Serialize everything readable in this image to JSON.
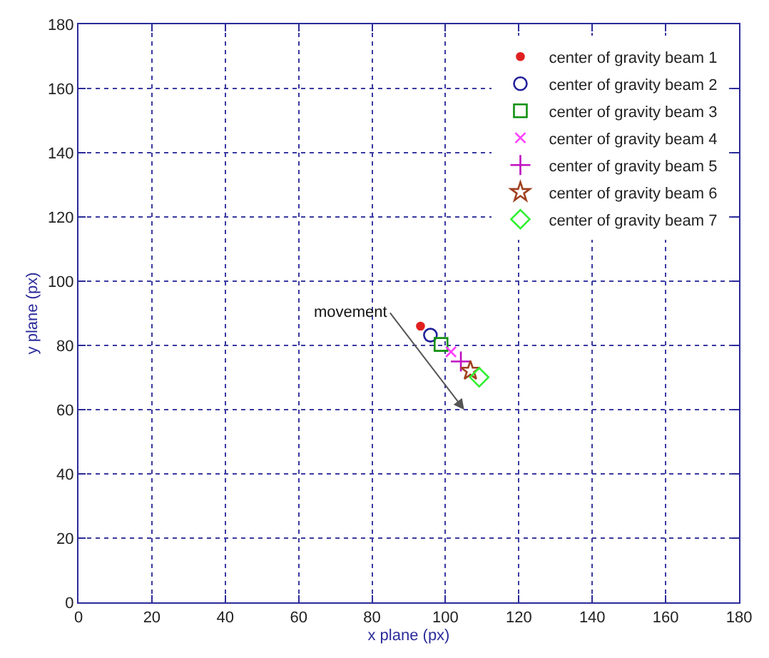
{
  "chart_data": {
    "type": "scatter",
    "xlabel": "x plane (px)",
    "ylabel": "y plane (px)",
    "xlim": [
      0,
      180
    ],
    "ylim": [
      0,
      180
    ],
    "xticks": [
      0,
      20,
      40,
      60,
      80,
      100,
      120,
      140,
      160,
      180
    ],
    "yticks": [
      0,
      20,
      40,
      60,
      80,
      100,
      120,
      140,
      160,
      180
    ],
    "grid": true,
    "legend": "top right",
    "series": [
      {
        "name": "center of gravity beam 1",
        "color": "#e02020",
        "marker": "point",
        "x": [
          93.2
        ],
        "values": [
          86.0
        ]
      },
      {
        "name": "center of gravity beam 2",
        "color": "#20209a",
        "marker": "circle",
        "x": [
          95.9
        ],
        "values": [
          83.2
        ]
      },
      {
        "name": "center of gravity beam 3",
        "color": "#109010",
        "marker": "square",
        "x": [
          98.8
        ],
        "values": [
          80.3
        ]
      },
      {
        "name": "center of gravity beam 4",
        "color": "#ff40ff",
        "marker": "x",
        "x": [
          101.5
        ],
        "values": [
          78.0
        ]
      },
      {
        "name": "center of gravity beam 5",
        "color": "#c010c0",
        "marker": "plus",
        "x": [
          104.2
        ],
        "values": [
          75.0
        ]
      },
      {
        "name": "center of gravity beam 6",
        "color": "#a04020",
        "marker": "star",
        "x": [
          106.8
        ],
        "values": [
          72.1
        ]
      },
      {
        "name": "center of gravity beam 7",
        "color": "#30f030",
        "marker": "diamond",
        "x": [
          109.2
        ],
        "values": [
          70.1
        ]
      }
    ],
    "annotations": [
      "movement"
    ]
  }
}
